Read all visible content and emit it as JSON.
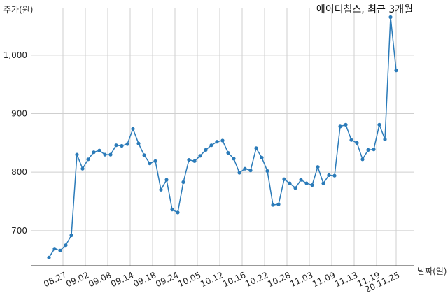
{
  "chart_data": {
    "type": "line",
    "title": "에이디칩스, 최근 3개월",
    "ylabel": "주가(원)",
    "xlabel": "날짜(일)",
    "ylim": [
      640,
      1080
    ],
    "y_ticks": [
      700,
      800,
      900,
      1000
    ],
    "y_tick_labels": [
      "700",
      "800",
      "900",
      "1,000"
    ],
    "x_tick_labels": [
      "08.27",
      "09.02",
      "09.08",
      "09.14",
      "09.18",
      "09.24",
      "10.05",
      "10.12",
      "10.16",
      "10.22",
      "10.28",
      "11.03",
      "11.09",
      "11.13",
      "11.19",
      "20.11.25"
    ],
    "x_tick_index": [
      2.5,
      6.5,
      10.5,
      14.5,
      18.5,
      22.5,
      26.5,
      30.5,
      34.5,
      38.5,
      42.5,
      46.5,
      50.5,
      54.5,
      58.5,
      62
    ],
    "grid": true,
    "line_color": "#2b7bb9",
    "series": [
      {
        "values": [
          654,
          669,
          666,
          675,
          692,
          830,
          806,
          822,
          834,
          837,
          830,
          830,
          846,
          845,
          848,
          874,
          849,
          829,
          815,
          819,
          770,
          787,
          736,
          731,
          783,
          821,
          819,
          828,
          838,
          846,
          852,
          854,
          833,
          823,
          799,
          806,
          803,
          841,
          825,
          802,
          744,
          745,
          788,
          781,
          773,
          787,
          781,
          778,
          809,
          781,
          795,
          794,
          878,
          881,
          855,
          850,
          822,
          838,
          839,
          881,
          856,
          1065,
          974
        ]
      }
    ]
  }
}
